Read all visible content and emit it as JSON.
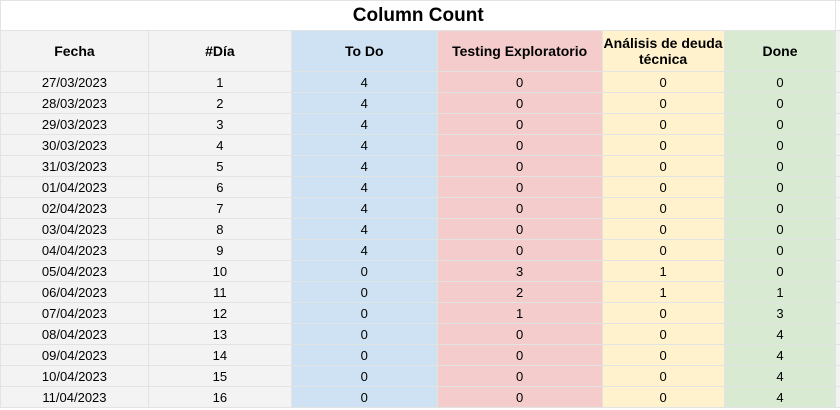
{
  "title": "Column Count",
  "headers": {
    "fecha": "Fecha",
    "dia": "#Día",
    "todo": "To Do",
    "testing": "Testing Exploratorio",
    "analisis": "Análisis de deuda técnica",
    "done": "Done"
  },
  "colors": {
    "todo": "#cfe2f3",
    "testing": "#f4cccc",
    "analisis": "#fff2cc",
    "done": "#d9ead3",
    "neutral": "#f3f3f3",
    "gridline": "#e2e3e3"
  },
  "rows": [
    [
      "27/03/2023",
      "1",
      "4",
      "0",
      "0",
      "0"
    ],
    [
      "28/03/2023",
      "2",
      "4",
      "0",
      "0",
      "0"
    ],
    [
      "29/03/2023",
      "3",
      "4",
      "0",
      "0",
      "0"
    ],
    [
      "30/03/2023",
      "4",
      "4",
      "0",
      "0",
      "0"
    ],
    [
      "31/03/2023",
      "5",
      "4",
      "0",
      "0",
      "0"
    ],
    [
      "01/04/2023",
      "6",
      "4",
      "0",
      "0",
      "0"
    ],
    [
      "02/04/2023",
      "7",
      "4",
      "0",
      "0",
      "0"
    ],
    [
      "03/04/2023",
      "8",
      "4",
      "0",
      "0",
      "0"
    ],
    [
      "04/04/2023",
      "9",
      "4",
      "0",
      "0",
      "0"
    ],
    [
      "05/04/2023",
      "10",
      "0",
      "3",
      "1",
      "0"
    ],
    [
      "06/04/2023",
      "11",
      "0",
      "2",
      "1",
      "1"
    ],
    [
      "07/04/2023",
      "12",
      "0",
      "1",
      "0",
      "3"
    ],
    [
      "08/04/2023",
      "13",
      "0",
      "0",
      "0",
      "4"
    ],
    [
      "09/04/2023",
      "14",
      "0",
      "0",
      "0",
      "4"
    ],
    [
      "10/04/2023",
      "15",
      "0",
      "0",
      "0",
      "4"
    ],
    [
      "11/04/2023",
      "16",
      "0",
      "0",
      "0",
      "4"
    ]
  ]
}
